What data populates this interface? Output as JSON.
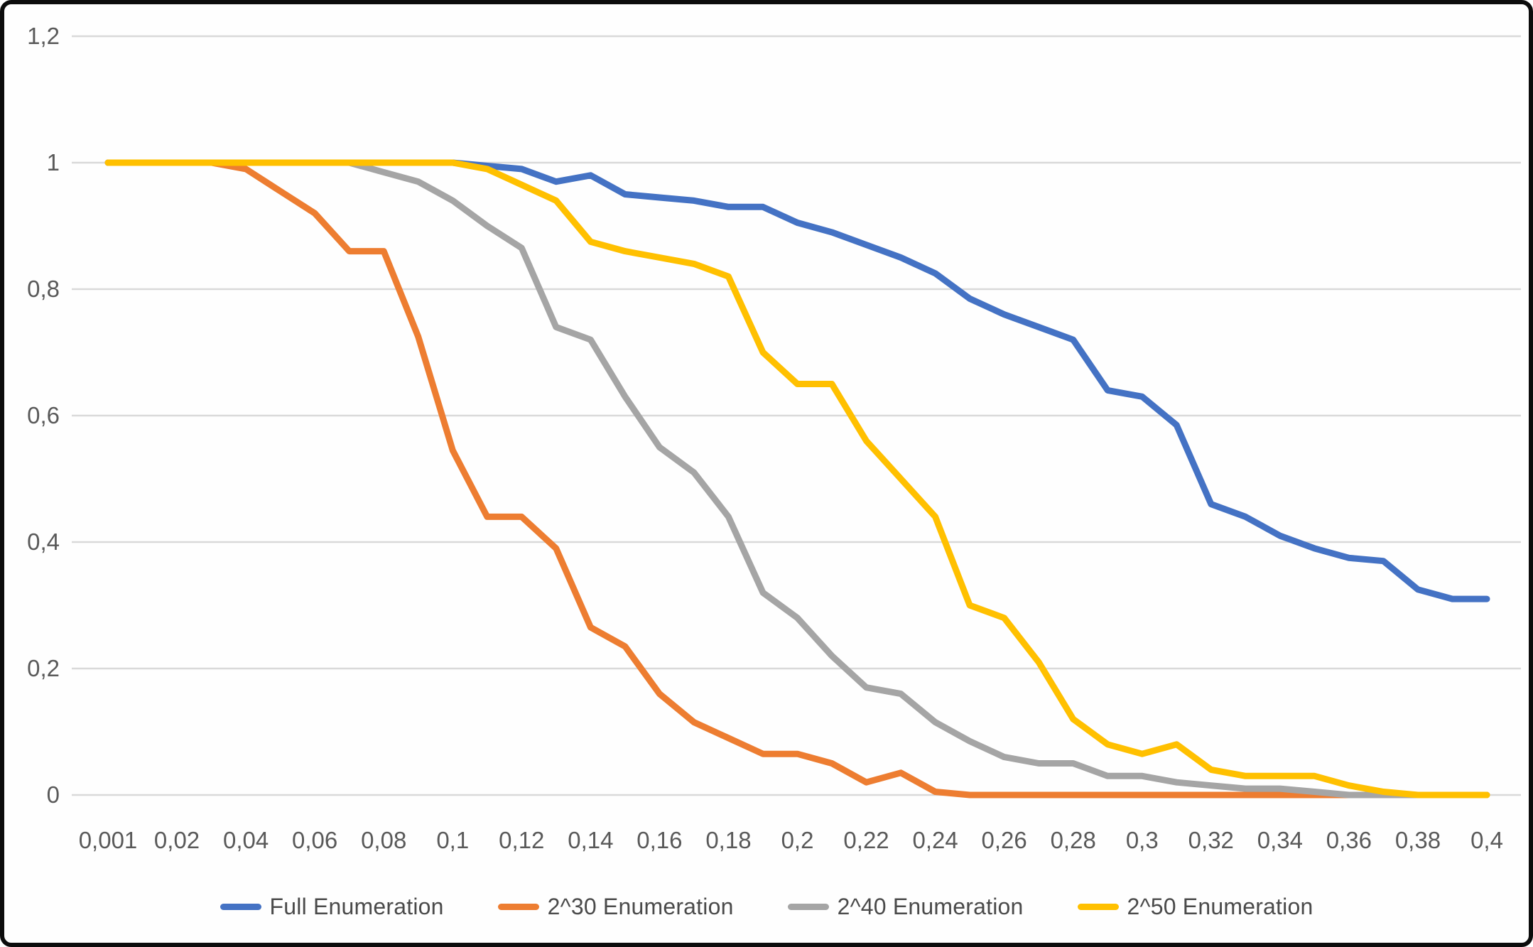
{
  "chart_data": {
    "type": "line",
    "title": "",
    "xlabel": "",
    "ylabel": "",
    "grid": true,
    "legend_position": "bottom",
    "ylim": [
      0,
      1.2
    ],
    "x": [
      0.001,
      0.01,
      0.02,
      0.03,
      0.04,
      0.05,
      0.06,
      0.07,
      0.08,
      0.09,
      0.1,
      0.11,
      0.12,
      0.13,
      0.14,
      0.15,
      0.16,
      0.17,
      0.18,
      0.19,
      0.2,
      0.21,
      0.22,
      0.23,
      0.24,
      0.25,
      0.26,
      0.27,
      0.28,
      0.29,
      0.3,
      0.31,
      0.32,
      0.33,
      0.34,
      0.35,
      0.36,
      0.37,
      0.38,
      0.39,
      0.4
    ],
    "x_tick_labels": [
      "0,001",
      "0,02",
      "0,04",
      "0,06",
      "0,08",
      "0,1",
      "0,12",
      "0,14",
      "0,16",
      "0,18",
      "0,2",
      "0,22",
      "0,24",
      "0,26",
      "0,28",
      "0,3",
      "0,32",
      "0,34",
      "0,36",
      "0,38",
      "0,4"
    ],
    "y_tick_labels": [
      "1,2",
      "1",
      "0,8",
      "0,6",
      "0,4",
      "0,2",
      "0"
    ],
    "y_tick_values": [
      1.2,
      1,
      0.8,
      0.6,
      0.4,
      0.2,
      0
    ],
    "series": [
      {
        "name": "Full Enumeration",
        "color": "#4472C4",
        "values": [
          1,
          1,
          1,
          1,
          1,
          1,
          1,
          1,
          1,
          1,
          1,
          0.995,
          0.99,
          0.97,
          0.98,
          0.95,
          0.945,
          0.94,
          0.93,
          0.93,
          0.905,
          0.89,
          0.87,
          0.85,
          0.825,
          0.785,
          0.76,
          0.74,
          0.72,
          0.64,
          0.63,
          0.585,
          0.46,
          0.44,
          0.41,
          0.39,
          0.375,
          0.37,
          0.325,
          0.31,
          0.31
        ]
      },
      {
        "name": "2^30 Enumeration",
        "color": "#ED7D31",
        "values": [
          1,
          1,
          1,
          1,
          0.99,
          0.955,
          0.92,
          0.86,
          0.86,
          0.725,
          0.545,
          0.44,
          0.44,
          0.39,
          0.265,
          0.235,
          0.16,
          0.115,
          0.09,
          0.065,
          0.065,
          0.05,
          0.02,
          0.035,
          0.005,
          0,
          0,
          0,
          0,
          0,
          0,
          0,
          0,
          0,
          0,
          0,
          0,
          0,
          0,
          0,
          0
        ]
      },
      {
        "name": "2^40 Enumeration",
        "color": "#A5A5A5",
        "values": [
          1,
          1,
          1,
          1,
          1,
          1,
          1,
          1,
          0.985,
          0.97,
          0.94,
          0.9,
          0.865,
          0.74,
          0.72,
          0.63,
          0.55,
          0.51,
          0.44,
          0.32,
          0.28,
          0.22,
          0.17,
          0.16,
          0.115,
          0.085,
          0.06,
          0.05,
          0.05,
          0.03,
          0.03,
          0.02,
          0.015,
          0.01,
          0.01,
          0.005,
          0,
          0,
          0,
          0,
          0
        ]
      },
      {
        "name": "2^50 Enumeration",
        "color": "#FFC000",
        "values": [
          1,
          1,
          1,
          1,
          1,
          1,
          1,
          1,
          1,
          1,
          1,
          0.99,
          0.965,
          0.94,
          0.875,
          0.86,
          0.85,
          0.84,
          0.82,
          0.7,
          0.65,
          0.65,
          0.56,
          0.5,
          0.44,
          0.3,
          0.28,
          0.21,
          0.12,
          0.08,
          0.065,
          0.08,
          0.04,
          0.03,
          0.03,
          0.03,
          0.015,
          0.005,
          0,
          0,
          0
        ]
      }
    ],
    "colors": {
      "gridline": "#D9D9D9",
      "tick_text": "#595959",
      "legend_text": "#4a4a4a",
      "background": "#FEFEFE",
      "frame_border": "#0C0C0C"
    }
  }
}
